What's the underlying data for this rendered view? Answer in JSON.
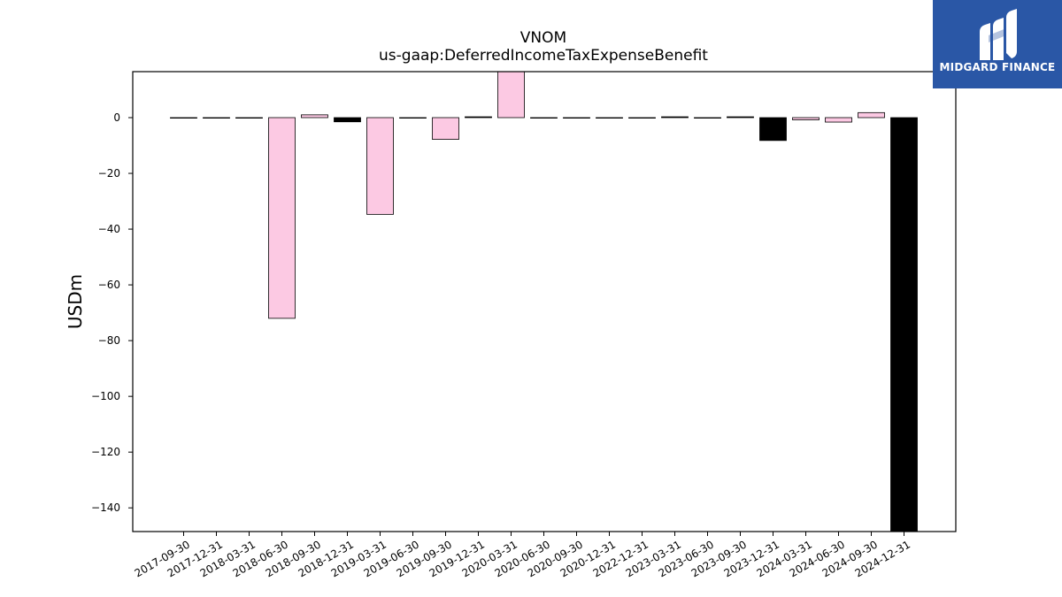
{
  "logo": {
    "text": "MIDGARD FINANCE",
    "icon": "midgard-m-icon",
    "background": "#2a57a6"
  },
  "chart_data": {
    "type": "bar",
    "title": "VNOM",
    "subtitle": "us-gaap:DeferredIncomeTaxExpenseBenefit",
    "xlabel": "",
    "ylabel": "USDm",
    "ylim": [
      -148.5,
      16.5
    ],
    "yticks": [
      0,
      -20,
      -40,
      -60,
      -80,
      -100,
      -120,
      -140
    ],
    "ytick_labels": [
      "0",
      "−20",
      "−40",
      "−60",
      "−80",
      "−100",
      "−120",
      "−140"
    ],
    "grid": false,
    "legend": "none",
    "colors": {
      "positive": "#fcc9e3",
      "negative_highlight": "#000000",
      "edge": "#000000"
    },
    "categories": [
      "2017-09-30",
      "2017-12-31",
      "2018-03-31",
      "2018-06-30",
      "2018-09-30",
      "2018-12-31",
      "2019-03-31",
      "2019-06-30",
      "2019-09-30",
      "2019-12-31",
      "2020-03-31",
      "2020-06-30",
      "2020-09-30",
      "2020-12-31",
      "2022-12-31",
      "2023-03-31",
      "2023-06-30",
      "2023-09-30",
      "2023-12-31",
      "2024-03-31",
      "2024-06-30",
      "2024-09-30",
      "2024-12-31"
    ],
    "values": [
      0,
      0,
      0,
      -72.0,
      1.0,
      -1.5,
      -34.7,
      0,
      -7.8,
      0.3,
      16.5,
      0,
      0,
      0,
      0,
      0.3,
      0,
      0.3,
      -8.2,
      -0.8,
      -1.6,
      1.8,
      -148.5
    ],
    "bar_colors": [
      "#fcc9e3",
      "#fcc9e3",
      "#fcc9e3",
      "#fcc9e3",
      "#fcc9e3",
      "#000000",
      "#fcc9e3",
      "#fcc9e3",
      "#fcc9e3",
      "#000000",
      "#fcc9e3",
      "#fcc9e3",
      "#fcc9e3",
      "#fcc9e3",
      "#fcc9e3",
      "#000000",
      "#fcc9e3",
      "#000000",
      "#000000",
      "#fcc9e3",
      "#fcc9e3",
      "#fcc9e3",
      "#000000"
    ]
  }
}
